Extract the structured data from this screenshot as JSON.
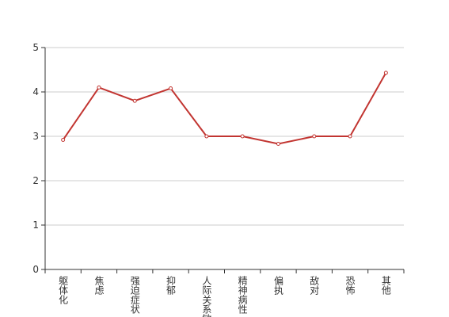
{
  "chart_data": {
    "type": "line",
    "categories": [
      "躯体化",
      "焦虑",
      "强迫症状",
      "抑郁",
      "人际关系敏感",
      "精神病性",
      "偏执",
      "敌对",
      "恐怖",
      "其他"
    ],
    "values": [
      2.92,
      4.1,
      3.8,
      4.08,
      3.0,
      3.0,
      2.83,
      3.0,
      3.0,
      4.43
    ],
    "color": "#c23531",
    "ylim": [
      0,
      5
    ],
    "yticks": [
      0,
      1,
      2,
      3,
      4,
      5
    ],
    "grid": true
  }
}
